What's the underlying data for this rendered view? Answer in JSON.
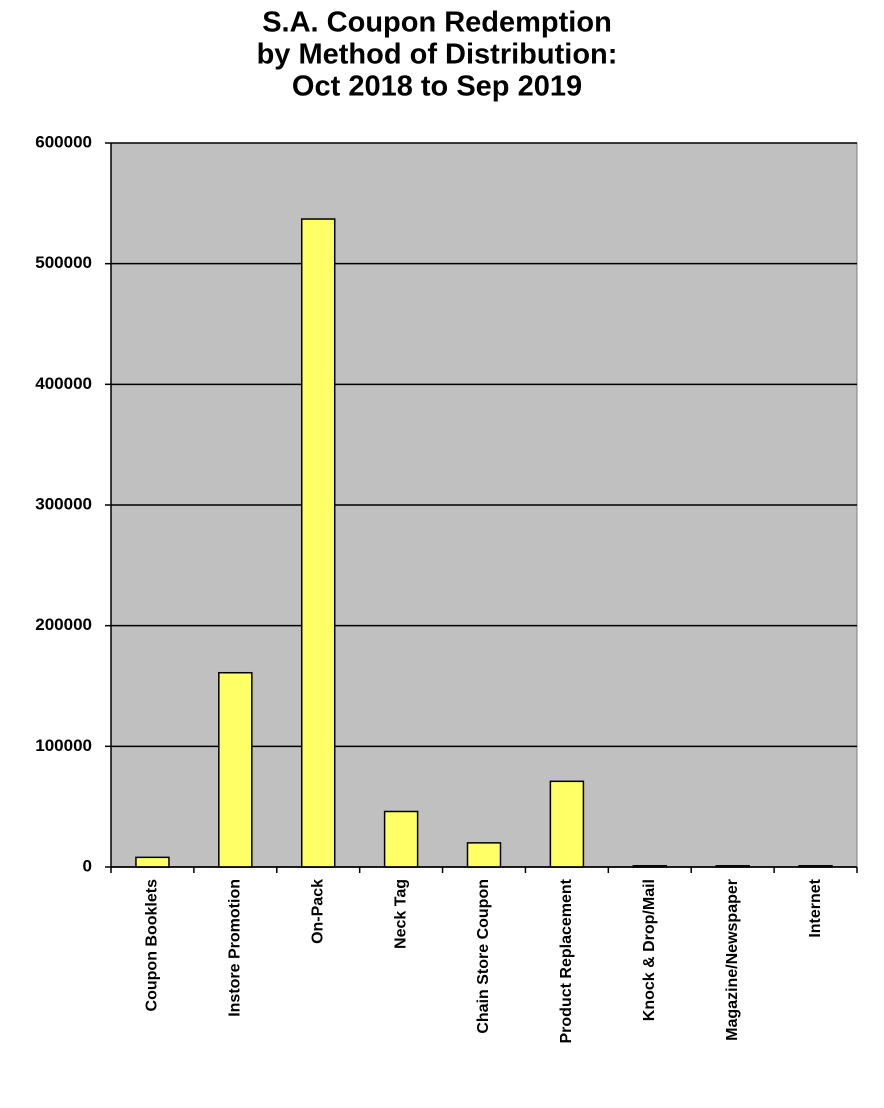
{
  "chart_data": {
    "type": "bar",
    "title": [
      "S.A. Coupon Redemption",
      "by Method of Distribution:",
      "Oct 2018 to Sep 2019"
    ],
    "categories": [
      "Coupon Booklets",
      "Instore Promotion",
      "On-Pack",
      "Neck Tag",
      "Chain Store Coupon",
      "Product Replacement",
      "Knock & Drop/Mail",
      "Magazine/Newspaper",
      "Internet"
    ],
    "values": [
      8000,
      161000,
      537000,
      46000,
      20000,
      71000,
      1000,
      1000,
      1000
    ],
    "color": "#ffff66",
    "ylim": [
      0,
      600000
    ],
    "yticks": [
      0,
      100000,
      200000,
      300000,
      400000,
      500000,
      600000
    ],
    "grid": true
  }
}
